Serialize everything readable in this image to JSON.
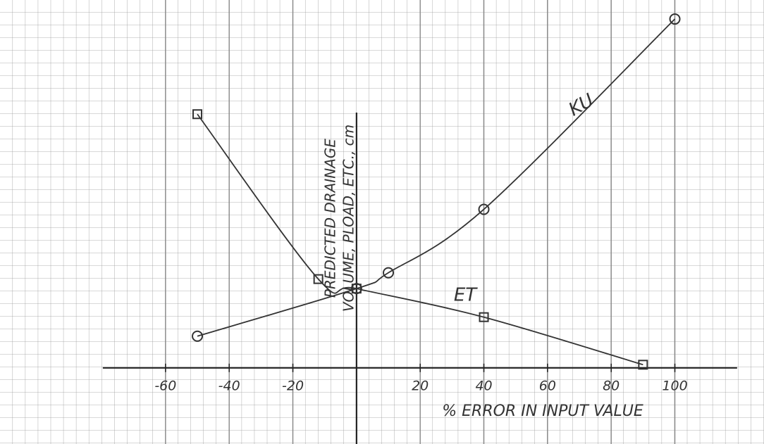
{
  "chart_data": {
    "type": "line",
    "y_label": [
      "PREDICTED DRAINAGE",
      "VOLUME, PLOAD, ETC., cm"
    ],
    "x_label": "% ERROR IN INPUT VALUE",
    "series": [
      {
        "name": "KU",
        "color": "#333333",
        "marker": "circle",
        "x": [
          -50,
          0,
          10,
          40,
          100
        ],
        "values": [
          10,
          25,
          30,
          50,
          110
        ]
      },
      {
        "name": "ET",
        "color": "#333333",
        "marker": "square",
        "x": [
          -50,
          -12,
          0,
          40,
          90
        ],
        "values": [
          80,
          28,
          25,
          16,
          1
        ]
      }
    ],
    "xlim": [
      -112,
      128
    ],
    "ylim": [
      -24,
      116
    ],
    "xticks": [
      -60,
      -40,
      -20,
      20,
      40,
      60,
      80,
      100
    ],
    "grid": true
  }
}
